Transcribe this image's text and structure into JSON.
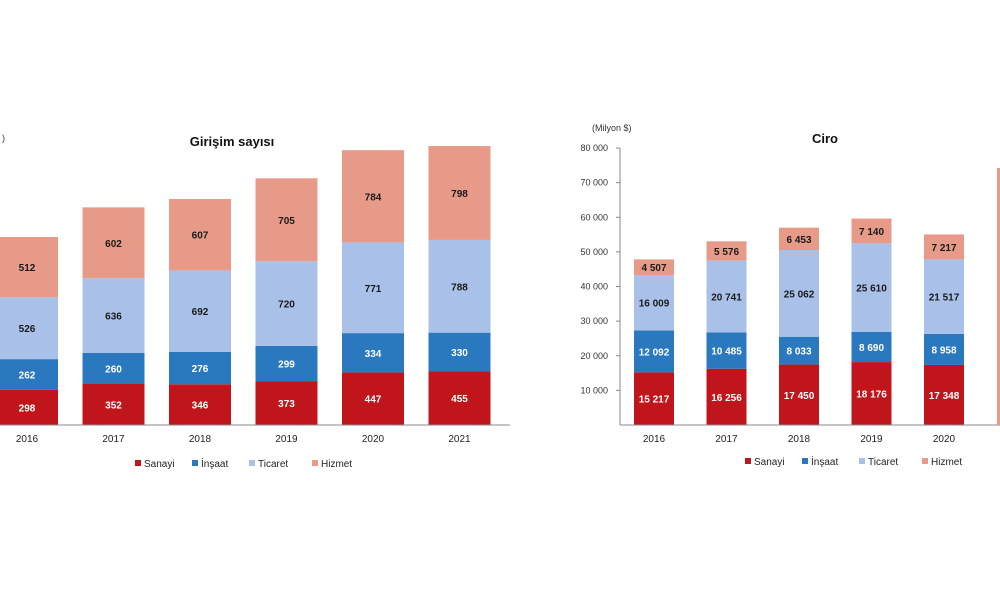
{
  "colors": {
    "Sanayi": "#c0161b",
    "İnşaat": "#2a79bf",
    "Ticaret": "#a9c1e9",
    "Hizmet": "#e79a87"
  },
  "chart_data": [
    {
      "type": "bar",
      "stacked": true,
      "title": "Girişim sayısı",
      "unit_label": ")",
      "categories": [
        "2016",
        "2017",
        "2018",
        "2019",
        "2020",
        "2021"
      ],
      "series": [
        {
          "name": "Sanayi",
          "values": [
            298,
            352,
            346,
            373,
            447,
            455
          ],
          "labels": [
            "298",
            "352",
            "346",
            "373",
            "447",
            "455"
          ]
        },
        {
          "name": "İnşaat",
          "values": [
            262,
            260,
            276,
            299,
            334,
            330
          ],
          "labels": [
            "262",
            "260",
            "276",
            "299",
            "334",
            "330"
          ]
        },
        {
          "name": "Ticaret",
          "values": [
            526,
            636,
            692,
            720,
            771,
            788
          ],
          "labels": [
            "526",
            "636",
            "692",
            "720",
            "771",
            "788"
          ]
        },
        {
          "name": "Hizmet",
          "values": [
            512,
            602,
            607,
            705,
            784,
            798
          ],
          "labels": [
            "512",
            "602",
            "607",
            "705",
            "784",
            "798"
          ]
        }
      ],
      "ylim": [
        0,
        2550
      ],
      "grid": false,
      "legend": "bottom"
    },
    {
      "type": "bar",
      "stacked": true,
      "title": "Ciro",
      "unit_label": "(Milyon $)",
      "categories": [
        "2016",
        "2017",
        "2018",
        "2019",
        "2020"
      ],
      "yticks": [
        "10 000",
        "20 000",
        "30 000",
        "40 000",
        "50 000",
        "60 000",
        "70 000",
        "80 000"
      ],
      "series": [
        {
          "name": "Sanayi",
          "values": [
            15217,
            16256,
            17450,
            18176,
            17348
          ],
          "labels": [
            "15 217",
            "16 256",
            "17 450",
            "18 176",
            "17 348"
          ]
        },
        {
          "name": "İnşaat",
          "values": [
            12092,
            10485,
            8033,
            8690,
            8958
          ],
          "labels": [
            "12 092",
            "10 485",
            "8 033",
            "8 690",
            "8 958"
          ]
        },
        {
          "name": "Ticaret",
          "values": [
            16009,
            20741,
            25062,
            25610,
            21517
          ],
          "labels": [
            "16 009",
            "20 741",
            "25 062",
            "25 610",
            "21 517"
          ]
        },
        {
          "name": "Hizmet",
          "values": [
            4507,
            5576,
            6453,
            7140,
            7217
          ],
          "labels": [
            "4 507",
            "5 576",
            "6 453",
            "7 140",
            "7 217"
          ]
        }
      ],
      "ylim": [
        0,
        80000
      ],
      "grid": false,
      "legend": "bottom"
    }
  ]
}
